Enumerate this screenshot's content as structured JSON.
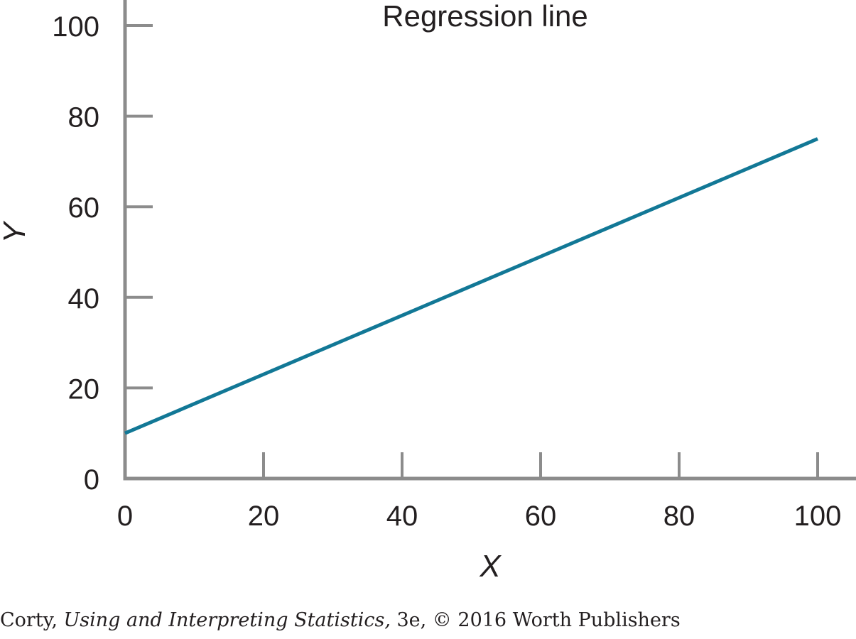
{
  "chart_data": {
    "type": "line",
    "xlabel": "X",
    "ylabel": "Y",
    "xlim": [
      0,
      100
    ],
    "ylim": [
      0,
      100
    ],
    "xticks": [
      0,
      20,
      40,
      60,
      80,
      100
    ],
    "yticks": [
      0,
      20,
      40,
      60,
      80,
      100
    ],
    "grid": false,
    "series": [
      {
        "name": "Regression line",
        "x": [
          0,
          100
        ],
        "y": [
          10,
          75
        ]
      }
    ],
    "colors": {
      "line": "#127896",
      "axis": "#8c8c8c",
      "text": "#231f20"
    }
  },
  "credit": {
    "author": "Corty, ",
    "book_title": "Using and Interpreting Statistics,",
    "rest": " 3e, © 2016 Worth Publishers"
  }
}
